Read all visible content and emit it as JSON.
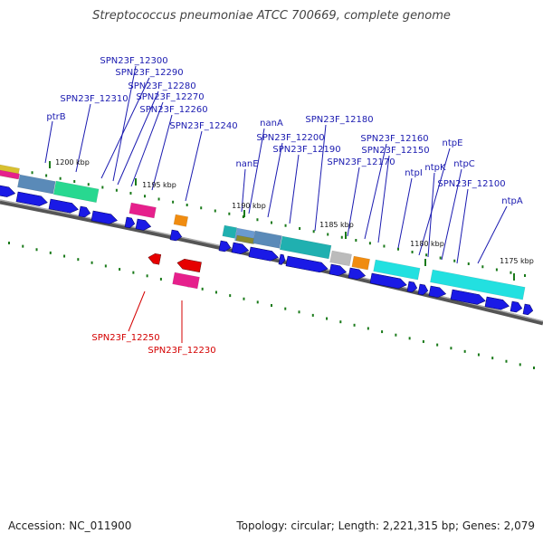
{
  "title": "Streptococcus pneumoniae ATCC 700669, complete genome",
  "footer": {
    "accession": "Accession: NC_011900",
    "summary": "Topology: circular; Length: 2,221,315 bp; Genes: 2,079"
  },
  "scale_labels": [
    "1200 kbp",
    "1195 kbp",
    "1190 kbp",
    "1185 kbp",
    "1180 kbp",
    "1175 kbp"
  ],
  "gene_labels_blue": [
    "SPN23F_12300",
    "SPN23F_12290",
    "SPN23F_12280",
    "SPN23F_12310",
    "SPN23F_12270",
    "SPN23F_12260",
    "ptrB",
    "SPN23F_12240",
    "nanA",
    "SPN23F_12180",
    "SPN23F_12200",
    "SPN23F_12190",
    "nanE",
    "SPN23F_12160",
    "SPN23F_12150",
    "ntpE",
    "SPN23F_12170",
    "ntpI",
    "ntpK",
    "ntpC",
    "SPN23F_12100",
    "ntpA"
  ],
  "gene_labels_red": [
    "SPN23F_12250",
    "SPN23F_12230"
  ],
  "colors": {
    "forward_gene": "#1a1ae6",
    "reverse_gene": "#e60000",
    "label_blue": "#1a1ab0",
    "label_red": "#d40000",
    "backbone": "#777777",
    "tick": "#1a7a1a",
    "cog_cyan": "#22e0e0",
    "cog_teal": "#20b0b0",
    "cog_steel": "#5a8ab8",
    "cog_mint": "#28d890",
    "cog_magenta": "#e6208c",
    "cog_orange": "#f08c10",
    "cog_grey": "#bbbbbb",
    "cog_olive": "#8a8a30"
  }
}
